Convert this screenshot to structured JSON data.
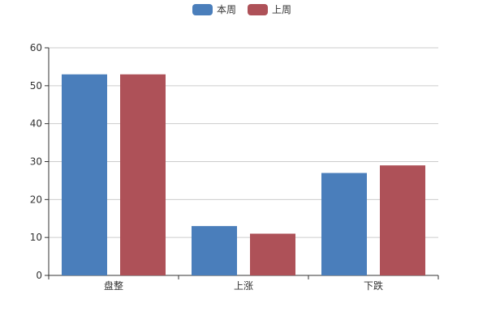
{
  "chart_data": {
    "type": "bar",
    "categories": [
      "盘整",
      "上涨",
      "下跌"
    ],
    "series": [
      {
        "name": "本周",
        "values": [
          53,
          13,
          27
        ],
        "color": "#4a7ebb"
      },
      {
        "name": "上周",
        "values": [
          53,
          11,
          29
        ],
        "color": "#ae5158"
      }
    ],
    "ylim": [
      0,
      60
    ],
    "yticks": [
      0,
      10,
      20,
      30,
      40,
      50,
      60
    ],
    "grid": true,
    "legend_position": "top-center"
  }
}
